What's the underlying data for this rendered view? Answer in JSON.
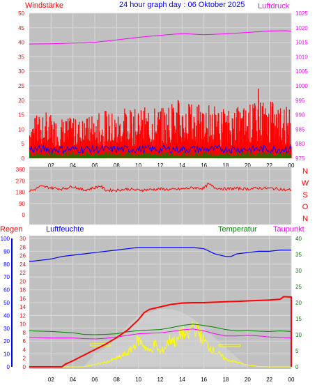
{
  "page": {
    "background": "#ffffff",
    "plot_bg": "#c0c0c0",
    "grid_color": "#d8d8d8"
  },
  "header": {
    "wind_label": "Windstärke",
    "title": "24 hour graph day : 06 Oktober 2025",
    "pressure_label": "Luftdruck"
  },
  "lower_header": {
    "rain_label": "Regen",
    "humidity_label": "Luftfeuchte",
    "temperature_label": "Temperatur",
    "dewpoint_label": "Taupunkt"
  },
  "colors": {
    "wind": "#ff0000",
    "gust_avg": "#0000ff",
    "wind_base": "#008000",
    "pressure": "#ff00ff",
    "direction": "#ff0000",
    "rain": "#ff0000",
    "humidity": "#0000ff",
    "temperature": "#008000",
    "dewpoint": "#ff00ff",
    "solar": "#ffff00",
    "uv": "#ffffff",
    "rain_axis": "#ff0000",
    "humidity_axis": "#0000ff",
    "temperature_axis": "#008000",
    "dewpoint_axis": "#ff00ff"
  },
  "chart_data": [
    {
      "id": "wind_pressure",
      "type": "line",
      "x_ticks": [
        "02",
        "04",
        "06",
        "08",
        "10",
        "12",
        "14",
        "16",
        "18",
        "20",
        "22",
        "00"
      ],
      "y_left": {
        "ticks": [
          "0",
          "5",
          "10",
          "15",
          "20",
          "25",
          "30",
          "35",
          "40",
          "45",
          "50"
        ],
        "ylim": [
          0,
          50
        ]
      },
      "y_right": {
        "ticks": [
          "975",
          "980",
          "985",
          "990",
          "995",
          "1000",
          "1005",
          "1010",
          "1015",
          "1020",
          "1025"
        ],
        "ylim": [
          975,
          1025
        ]
      },
      "series": [
        {
          "key": "pressure",
          "axis": "right",
          "points": [
            [
              0,
              1014.4
            ],
            [
              2,
              1014.5
            ],
            [
              4,
              1014.7
            ],
            [
              6,
              1015.0
            ],
            [
              8,
              1015.8
            ],
            [
              10,
              1016.7
            ],
            [
              12,
              1017.4
            ],
            [
              14,
              1018.0
            ],
            [
              16,
              1017.6
            ],
            [
              18,
              1017.9
            ],
            [
              20,
              1018.4
            ],
            [
              22,
              1018.9
            ],
            [
              23.5,
              1019.0
            ],
            [
              24,
              1018.8
            ]
          ]
        }
      ],
      "wind_envelope": {
        "gust_max_profile": [
          [
            0,
            16
          ],
          [
            2,
            15
          ],
          [
            4,
            14
          ],
          [
            6,
            15
          ],
          [
            8,
            17
          ],
          [
            10,
            17
          ],
          [
            12,
            19
          ],
          [
            14,
            21
          ],
          [
            16,
            18
          ],
          [
            18,
            17
          ],
          [
            20,
            19
          ],
          [
            22,
            20
          ],
          [
            24,
            16
          ]
        ],
        "gust_min_profile": [
          [
            0,
            4
          ],
          [
            2,
            4
          ],
          [
            4,
            4
          ],
          [
            6,
            4
          ],
          [
            8,
            4
          ],
          [
            10,
            4
          ],
          [
            12,
            4
          ],
          [
            14,
            5
          ],
          [
            16,
            4
          ],
          [
            18,
            4
          ],
          [
            20,
            5
          ],
          [
            22,
            5
          ],
          [
            24,
            4
          ]
        ],
        "peak": [
          21,
          24
        ],
        "avg_level": 3,
        "base_level": 2
      }
    },
    {
      "id": "wind_direction",
      "type": "line",
      "x_ticks": [],
      "y_left": {
        "ticks": [
          "0",
          "90",
          "180",
          "270",
          "360"
        ],
        "ylim": [
          0,
          360
        ]
      },
      "y_right": {
        "ticks": [
          "N",
          "W",
          "S",
          "O",
          "N"
        ]
      },
      "series": [
        {
          "key": "direction",
          "axis": "left",
          "points": [
            [
              0,
              190
            ],
            [
              0.5,
              200
            ],
            [
              1,
              225
            ],
            [
              2,
              215
            ],
            [
              3,
              205
            ],
            [
              4,
              225
            ],
            [
              5,
              195
            ],
            [
              6,
              215
            ],
            [
              6.5,
              230
            ],
            [
              7,
              195
            ],
            [
              8,
              195
            ],
            [
              9,
              205
            ],
            [
              10,
              195
            ],
            [
              11,
              200
            ],
            [
              12,
              205
            ],
            [
              13,
              200
            ],
            [
              14,
              205
            ],
            [
              15,
              215
            ],
            [
              16,
              210
            ],
            [
              16.4,
              245
            ],
            [
              17,
              215
            ],
            [
              18,
              205
            ],
            [
              19,
              210
            ],
            [
              20,
              205
            ],
            [
              21,
              212
            ],
            [
              22,
              210
            ],
            [
              23,
              205
            ],
            [
              23.5,
              195
            ],
            [
              24,
              200
            ]
          ]
        }
      ]
    },
    {
      "id": "rain_temp_humidity",
      "type": "line",
      "x_ticks": [
        "02",
        "04",
        "06",
        "08",
        "10",
        "12",
        "14",
        "16",
        "18",
        "20",
        "22",
        "00"
      ],
      "y_axes": {
        "humidity": {
          "ticks": [
            "0",
            "10",
            "20",
            "30",
            "40",
            "50",
            "60",
            "70",
            "80",
            "90",
            "100"
          ],
          "ylim": [
            0,
            100
          ]
        },
        "rain": {
          "ticks": [
            "0",
            "2",
            "4",
            "6",
            "8",
            "10",
            "12",
            "14",
            "16",
            "18",
            "20",
            "22",
            "24",
            "26",
            "28",
            "30"
          ],
          "ylim": [
            0,
            30
          ]
        },
        "temperature": {
          "ticks": [
            "0",
            "5",
            "10",
            "15",
            "20",
            "25",
            "30",
            "35",
            "40"
          ],
          "ylim": [
            0,
            40
          ]
        }
      },
      "series": [
        {
          "key": "humidity",
          "axis": "humidity",
          "points": [
            [
              0,
              82
            ],
            [
              1,
              83
            ],
            [
              2,
              84
            ],
            [
              3,
              86
            ],
            [
              4,
              87
            ],
            [
              5,
              88
            ],
            [
              6,
              89
            ],
            [
              7,
              90
            ],
            [
              8,
              91
            ],
            [
              9,
              92
            ],
            [
              10,
              93
            ],
            [
              12,
              93
            ],
            [
              14,
              93
            ],
            [
              15,
              93
            ],
            [
              16,
              92
            ],
            [
              17,
              88
            ],
            [
              18,
              86
            ],
            [
              18.5,
              86
            ],
            [
              19,
              88
            ],
            [
              20,
              89
            ],
            [
              21,
              90
            ],
            [
              22,
              90
            ],
            [
              23,
              91
            ],
            [
              24,
              91
            ]
          ]
        },
        {
          "key": "rain",
          "axis": "rain",
          "points": [
            [
              0,
              0
            ],
            [
              3.0,
              0
            ],
            [
              3.3,
              0.6
            ],
            [
              4,
              1.4
            ],
            [
              5,
              2.7
            ],
            [
              6,
              4.0
            ],
            [
              7,
              5.3
            ],
            [
              8,
              6.8
            ],
            [
              9,
              8.6
            ],
            [
              10,
              11.0
            ],
            [
              10.5,
              12.6
            ],
            [
              11,
              13.4
            ],
            [
              12,
              14.0
            ],
            [
              13,
              14.6
            ],
            [
              14,
              14.9
            ],
            [
              15,
              15.0
            ],
            [
              16,
              15.0
            ],
            [
              17,
              15.1
            ],
            [
              18,
              15.2
            ],
            [
              19,
              15.3
            ],
            [
              20,
              15.4
            ],
            [
              21,
              15.5
            ],
            [
              22,
              15.6
            ],
            [
              23,
              15.8
            ],
            [
              23.3,
              16.4
            ],
            [
              24,
              16.3
            ]
          ]
        },
        {
          "key": "temperature",
          "axis": "temperature",
          "points": [
            [
              0,
              11.2
            ],
            [
              2,
              11.0
            ],
            [
              4,
              10.6
            ],
            [
              5,
              10.1
            ],
            [
              6,
              10.0
            ],
            [
              7,
              10.1
            ],
            [
              8,
              10.3
            ],
            [
              9,
              10.9
            ],
            [
              10,
              11.3
            ],
            [
              12,
              11.6
            ],
            [
              13,
              12.2
            ],
            [
              14,
              12.9
            ],
            [
              15,
              13.3
            ],
            [
              16,
              12.9
            ],
            [
              17,
              12.3
            ],
            [
              18,
              11.6
            ],
            [
              19,
              11.2
            ],
            [
              20,
              11.3
            ],
            [
              21,
              11.1
            ],
            [
              22,
              11.0
            ],
            [
              23,
              11.2
            ],
            [
              24,
              11.0
            ]
          ]
        },
        {
          "key": "dewpoint",
          "axis": "temperature",
          "points": [
            [
              0,
              9.2
            ],
            [
              2,
              9.0
            ],
            [
              4,
              9.0
            ],
            [
              5,
              8.8
            ],
            [
              6,
              8.7
            ],
            [
              7,
              8.9
            ],
            [
              8,
              9.3
            ],
            [
              9,
              9.8
            ],
            [
              10,
              10.3
            ],
            [
              12,
              10.6
            ],
            [
              13,
              11.0
            ],
            [
              14,
              11.5
            ],
            [
              15,
              11.8
            ],
            [
              16,
              11.2
            ],
            [
              17,
              10.3
            ],
            [
              18,
              9.6
            ],
            [
              19,
              9.6
            ],
            [
              20,
              9.8
            ],
            [
              21,
              9.6
            ],
            [
              22,
              9.3
            ],
            [
              23,
              9.2
            ],
            [
              24,
              9.0
            ]
          ]
        },
        {
          "key": "solar",
          "axis": "temperature",
          "points": [
            [
              0,
              0
            ],
            [
              5,
              0
            ],
            [
              6,
              0.7
            ],
            [
              7,
              1.4
            ],
            [
              8,
              2.6
            ],
            [
              9,
              4.2
            ],
            [
              9.5,
              6.0
            ],
            [
              10,
              8.4
            ],
            [
              10.5,
              6.8
            ],
            [
              11,
              4.6
            ],
            [
              11.5,
              7.2
            ],
            [
              12,
              4.2
            ],
            [
              12.5,
              6.4
            ],
            [
              13,
              9.0
            ],
            [
              13.5,
              7.4
            ],
            [
              14,
              11.2
            ],
            [
              14.5,
              9.0
            ],
            [
              15,
              13.5
            ],
            [
              15.5,
              10.8
            ],
            [
              16,
              8.1
            ],
            [
              16.5,
              6.2
            ],
            [
              17,
              4.8
            ],
            [
              18,
              2.4
            ],
            [
              19,
              1.4
            ],
            [
              20,
              0.5
            ],
            [
              21,
              0.1
            ],
            [
              22,
              0
            ],
            [
              24,
              0
            ]
          ]
        },
        {
          "key": "uv",
          "axis": "temperature",
          "points": [
            [
              5,
              0
            ],
            [
              6,
              4
            ],
            [
              7,
              6
            ],
            [
              8,
              9
            ],
            [
              9,
              13
            ],
            [
              10,
              16
            ],
            [
              11,
              17
            ],
            [
              12,
              18
            ],
            [
              13,
              18
            ],
            [
              14,
              17
            ],
            [
              15,
              15
            ],
            [
              16,
              12
            ],
            [
              17,
              9
            ],
            [
              18,
              6
            ],
            [
              19,
              3
            ],
            [
              20,
              0
            ]
          ]
        }
      ],
      "markers": [
        {
          "key": "solar_box",
          "x": [
            5.6,
            7.4
          ],
          "y": [
            6.5,
            7.2
          ]
        },
        {
          "key": "solar_box",
          "x": [
            17.4,
            19.3
          ],
          "y": [
            6.3,
            7.0
          ]
        }
      ],
      "rain_drop_at_end": true
    }
  ]
}
